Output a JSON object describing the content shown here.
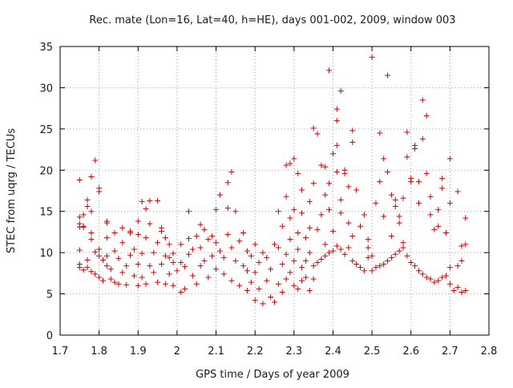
{
  "chart_data": {
    "type": "scatter",
    "title": "Rec. mate (Lon=16, Lat=40, h=HE), days 001-002, 2009, window 003",
    "xlabel": "GPS time / Days of year 2009",
    "ylabel": "STEC from uqrg / TECUs",
    "xlim": [
      1.7,
      2.8
    ],
    "ylim": [
      0,
      35
    ],
    "xticks": [
      "1.7",
      "1.8",
      "1.9",
      "2",
      "2.1",
      "2.2",
      "2.3",
      "2.4",
      "2.5",
      "2.6",
      "2.7",
      "2.8"
    ],
    "yticks": [
      "0",
      "5",
      "10",
      "15",
      "20",
      "25",
      "30",
      "35"
    ],
    "grid": true,
    "marker": "plus",
    "color": "#d40000",
    "series": [
      {
        "points": [
          [
            1.75,
            18.8
          ],
          [
            1.75,
            14.3
          ],
          [
            1.75,
            13.5
          ],
          [
            1.75,
            13.1
          ],
          [
            1.76,
            14.6
          ],
          [
            1.76,
            13.1
          ],
          [
            1.77,
            16.4
          ],
          [
            1.77,
            15.6
          ],
          [
            1.78,
            19.2
          ],
          [
            1.78,
            15.0
          ],
          [
            1.78,
            12.4
          ],
          [
            1.79,
            21.2
          ],
          [
            1.8,
            17.8
          ],
          [
            1.8,
            17.4
          ],
          [
            1.82,
            13.6
          ],
          [
            1.82,
            13.8
          ],
          [
            1.75,
            10.3
          ],
          [
            1.75,
            8.6
          ],
          [
            1.75,
            8.2
          ],
          [
            1.76,
            7.9
          ],
          [
            1.77,
            9.1
          ],
          [
            1.77,
            8.2
          ],
          [
            1.78,
            7.7
          ],
          [
            1.79,
            7.4
          ],
          [
            1.79,
            10.1
          ],
          [
            1.8,
            9.6
          ],
          [
            1.8,
            7.0
          ],
          [
            1.81,
            9.1
          ],
          [
            1.81,
            6.6
          ],
          [
            1.82,
            8.4
          ],
          [
            1.82,
            9.6
          ],
          [
            1.83,
            6.8
          ],
          [
            1.83,
            8.0
          ],
          [
            1.84,
            10.2
          ],
          [
            1.84,
            6.4
          ],
          [
            1.85,
            9.3
          ],
          [
            1.85,
            6.2
          ],
          [
            1.86,
            11.2
          ],
          [
            1.86,
            7.6
          ],
          [
            1.87,
            8.4
          ],
          [
            1.87,
            6.1
          ],
          [
            1.88,
            9.7
          ],
          [
            1.88,
            12.4
          ],
          [
            1.89,
            7.2
          ],
          [
            1.89,
            10.4
          ],
          [
            1.9,
            6.0
          ],
          [
            1.9,
            8.6
          ],
          [
            1.9,
            12.2
          ],
          [
            1.91,
            9.9
          ],
          [
            1.91,
            7.0
          ],
          [
            1.92,
            11.8
          ],
          [
            1.92,
            6.2
          ],
          [
            1.93,
            8.4
          ],
          [
            1.93,
            13.5
          ],
          [
            1.94,
            10.0
          ],
          [
            1.94,
            7.6
          ],
          [
            1.95,
            11.2
          ],
          [
            1.95,
            6.4
          ],
          [
            1.96,
            8.6
          ],
          [
            1.96,
            12.6
          ],
          [
            1.97,
            6.2
          ],
          [
            1.97,
            9.6
          ],
          [
            1.98,
            7.4
          ],
          [
            1.98,
            11.0
          ],
          [
            1.99,
            8.8
          ],
          [
            1.99,
            6.0
          ],
          [
            2.0,
            7.8
          ],
          [
            1.76,
            13.2
          ],
          [
            1.78,
            11.6
          ],
          [
            1.8,
            10.4
          ],
          [
            1.82,
            11.8
          ],
          [
            1.84,
            12.4
          ],
          [
            1.86,
            13.0
          ],
          [
            1.88,
            12.6
          ],
          [
            1.9,
            13.8
          ],
          [
            1.91,
            16.2
          ],
          [
            1.92,
            15.3
          ],
          [
            1.93,
            16.3
          ],
          [
            1.95,
            16.3
          ],
          [
            1.96,
            13.0
          ],
          [
            1.97,
            11.8
          ],
          [
            1.98,
            9.4
          ],
          [
            1.99,
            9.9
          ],
          [
            2.01,
            5.2
          ],
          [
            2.01,
            8.8
          ],
          [
            2.01,
            11.0
          ],
          [
            2.02,
            8.3
          ],
          [
            2.02,
            5.6
          ],
          [
            2.03,
            15.0
          ],
          [
            2.03,
            9.8
          ],
          [
            2.03,
            11.7
          ],
          [
            2.04,
            7.2
          ],
          [
            2.04,
            10.4
          ],
          [
            2.05,
            12.0
          ],
          [
            2.05,
            6.2
          ],
          [
            2.06,
            13.4
          ],
          [
            2.06,
            10.6
          ],
          [
            2.06,
            8.4
          ],
          [
            2.07,
            9.0
          ],
          [
            2.07,
            12.8
          ],
          [
            2.08,
            11.6
          ],
          [
            2.08,
            7.0
          ],
          [
            2.09,
            9.6
          ],
          [
            2.09,
            12.0
          ],
          [
            2.1,
            8.0
          ],
          [
            2.1,
            11.2
          ],
          [
            2.1,
            15.2
          ],
          [
            2.11,
            10.2
          ],
          [
            2.11,
            17.0
          ],
          [
            2.12,
            9.4
          ],
          [
            2.12,
            7.4
          ],
          [
            2.13,
            12.2
          ],
          [
            2.13,
            18.5
          ],
          [
            2.13,
            15.4
          ],
          [
            2.14,
            6.6
          ],
          [
            2.14,
            10.6
          ],
          [
            2.14,
            19.8
          ],
          [
            2.15,
            9.0
          ],
          [
            2.15,
            15.0
          ],
          [
            2.16,
            6.0
          ],
          [
            2.16,
            11.4
          ],
          [
            2.17,
            8.4
          ],
          [
            2.17,
            12.4
          ],
          [
            2.18,
            5.4
          ],
          [
            2.18,
            7.8
          ],
          [
            2.18,
            10.2
          ],
          [
            2.19,
            9.6
          ],
          [
            2.19,
            6.4
          ],
          [
            2.2,
            11.0
          ],
          [
            2.2,
            4.2
          ],
          [
            2.2,
            7.6
          ],
          [
            2.21,
            8.8
          ],
          [
            2.21,
            5.6
          ],
          [
            2.22,
            10.0
          ],
          [
            2.22,
            3.8
          ],
          [
            2.23,
            6.6
          ],
          [
            2.23,
            9.4
          ],
          [
            2.24,
            4.6
          ],
          [
            2.24,
            8.0
          ],
          [
            2.25,
            11.0
          ],
          [
            2.25,
            4.0
          ],
          [
            2.26,
            6.2
          ],
          [
            2.26,
            10.6
          ],
          [
            2.27,
            5.2
          ],
          [
            2.27,
            8.6
          ],
          [
            2.28,
            9.8
          ],
          [
            2.28,
            6.8
          ],
          [
            2.29,
            7.6
          ],
          [
            2.29,
            11.6
          ],
          [
            2.3,
            6.0
          ],
          [
            2.3,
            9.0
          ],
          [
            2.31,
            5.6
          ],
          [
            2.31,
            10.4
          ],
          [
            2.32,
            8.2
          ],
          [
            2.32,
            6.6
          ],
          [
            2.33,
            9.0
          ],
          [
            2.33,
            7.0
          ],
          [
            2.34,
            5.4
          ],
          [
            2.34,
            10.0
          ],
          [
            2.35,
            8.4
          ],
          [
            2.35,
            6.8
          ],
          [
            2.26,
            15.0
          ],
          [
            2.27,
            13.2
          ],
          [
            2.28,
            16.8
          ],
          [
            2.28,
            20.6
          ],
          [
            2.29,
            14.2
          ],
          [
            2.29,
            20.8
          ],
          [
            2.3,
            21.4
          ],
          [
            2.3,
            15.2
          ],
          [
            2.31,
            12.4
          ],
          [
            2.31,
            19.6
          ],
          [
            2.32,
            14.8
          ],
          [
            2.32,
            17.6
          ],
          [
            2.33,
            11.8
          ],
          [
            2.34,
            16.2
          ],
          [
            2.34,
            13.0
          ],
          [
            2.35,
            25.1
          ],
          [
            2.35,
            18.4
          ],
          [
            2.36,
            12.8
          ],
          [
            2.36,
            24.4
          ],
          [
            2.37,
            20.6
          ],
          [
            2.37,
            14.6
          ],
          [
            2.38,
            17.0
          ],
          [
            2.38,
            20.4
          ],
          [
            2.38,
            11.0
          ],
          [
            2.39,
            32.1
          ],
          [
            2.39,
            18.4
          ],
          [
            2.39,
            15.2
          ],
          [
            2.4,
            22.0
          ],
          [
            2.4,
            12.6
          ],
          [
            2.41,
            27.4
          ],
          [
            2.41,
            26.0
          ],
          [
            2.41,
            23.0
          ],
          [
            2.41,
            19.8
          ],
          [
            2.42,
            29.6
          ],
          [
            2.42,
            16.4
          ],
          [
            2.42,
            14.8
          ],
          [
            2.43,
            20.0
          ],
          [
            2.43,
            19.6
          ],
          [
            2.44,
            18.0
          ],
          [
            2.44,
            13.6
          ],
          [
            2.45,
            24.8
          ],
          [
            2.45,
            23.4
          ],
          [
            2.45,
            12.0
          ],
          [
            2.46,
            17.6
          ],
          [
            2.47,
            13.2
          ],
          [
            2.48,
            14.6
          ],
          [
            2.49,
            10.6
          ],
          [
            2.49,
            11.6
          ],
          [
            2.36,
            8.8
          ],
          [
            2.37,
            9.2
          ],
          [
            2.38,
            9.6
          ],
          [
            2.39,
            10.0
          ],
          [
            2.4,
            10.2
          ],
          [
            2.41,
            10.8
          ],
          [
            2.42,
            10.4
          ],
          [
            2.43,
            9.8
          ],
          [
            2.44,
            10.6
          ],
          [
            2.45,
            9.0
          ],
          [
            2.46,
            8.6
          ],
          [
            2.47,
            8.2
          ],
          [
            2.48,
            7.8
          ],
          [
            2.49,
            9.4
          ],
          [
            2.5,
            9.6
          ],
          [
            2.5,
            33.7
          ],
          [
            2.51,
            16.0
          ],
          [
            2.52,
            24.5
          ],
          [
            2.52,
            18.6
          ],
          [
            2.53,
            21.4
          ],
          [
            2.53,
            14.4
          ],
          [
            2.54,
            31.5
          ],
          [
            2.54,
            19.8
          ],
          [
            2.55,
            17.0
          ],
          [
            2.55,
            12.0
          ],
          [
            2.56,
            16.4
          ],
          [
            2.56,
            15.6
          ],
          [
            2.57,
            14.4
          ],
          [
            2.57,
            13.6
          ],
          [
            2.58,
            11.2
          ],
          [
            2.58,
            16.6
          ],
          [
            2.59,
            24.6
          ],
          [
            2.59,
            21.6
          ],
          [
            2.6,
            19.0
          ],
          [
            2.6,
            18.6
          ],
          [
            2.61,
            23.0
          ],
          [
            2.61,
            22.6
          ],
          [
            2.62,
            18.6
          ],
          [
            2.62,
            16.0
          ],
          [
            2.63,
            28.5
          ],
          [
            2.63,
            23.8
          ],
          [
            2.64,
            26.6
          ],
          [
            2.64,
            19.6
          ],
          [
            2.65,
            16.8
          ],
          [
            2.65,
            14.6
          ],
          [
            2.66,
            12.8
          ],
          [
            2.67,
            13.2
          ],
          [
            2.67,
            15.2
          ],
          [
            2.68,
            19.0
          ],
          [
            2.68,
            17.8
          ],
          [
            2.69,
            12.4
          ],
          [
            2.7,
            21.4
          ],
          [
            2.7,
            16.0
          ],
          [
            2.72,
            17.4
          ],
          [
            2.73,
            10.8
          ],
          [
            2.5,
            7.8
          ],
          [
            2.51,
            8.2
          ],
          [
            2.52,
            8.4
          ],
          [
            2.53,
            8.6
          ],
          [
            2.54,
            9.0
          ],
          [
            2.55,
            9.4
          ],
          [
            2.56,
            9.8
          ],
          [
            2.57,
            10.2
          ],
          [
            2.58,
            10.6
          ],
          [
            2.59,
            9.6
          ],
          [
            2.6,
            8.8
          ],
          [
            2.61,
            8.4
          ],
          [
            2.62,
            7.8
          ],
          [
            2.63,
            7.4
          ],
          [
            2.64,
            7.0
          ],
          [
            2.65,
            6.8
          ],
          [
            2.66,
            6.4
          ],
          [
            2.67,
            6.6
          ],
          [
            2.68,
            7.0
          ],
          [
            2.69,
            7.2
          ],
          [
            2.7,
            6.2
          ],
          [
            2.7,
            8.2
          ],
          [
            2.71,
            5.4
          ],
          [
            2.72,
            5.8
          ],
          [
            2.72,
            8.4
          ],
          [
            2.73,
            5.2
          ],
          [
            2.74,
            5.4
          ],
          [
            2.74,
            14.2
          ],
          [
            2.74,
            11.0
          ],
          [
            2.73,
            9.0
          ]
        ]
      }
    ]
  }
}
